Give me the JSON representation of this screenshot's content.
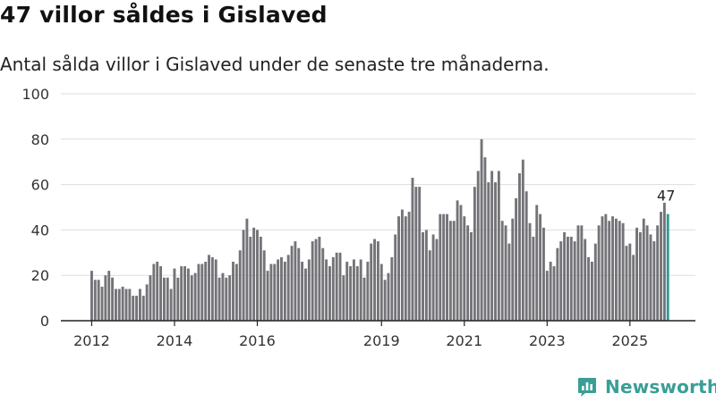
{
  "title": "47 villor såldes i Gislaved",
  "subtitle": "Antal sålda villor i Gislaved under de senaste tre månaderna.",
  "brand": {
    "name": "Newsworthy",
    "logo_icon": "newsworthy-logo-icon"
  },
  "colors": {
    "bar": "#747378",
    "highlight": "#2e9b96",
    "grid": "#dddddd",
    "axis": "#222222",
    "brand": "#3a9e96"
  },
  "chart_data": {
    "type": "bar",
    "title": "47 villor såldes i Gislaved",
    "subtitle": "Antal sålda villor i Gislaved under de senaste tre månaderna.",
    "xlabel": "",
    "ylabel": "",
    "ylim": [
      0,
      100
    ],
    "yticks": [
      0,
      20,
      40,
      60,
      80,
      100
    ],
    "grid": true,
    "start_period": "2012-01",
    "frequency": "monthly",
    "xtick_labels": [
      {
        "label": "2012",
        "index": 0
      },
      {
        "label": "2014",
        "index": 24
      },
      {
        "label": "2016",
        "index": 48
      },
      {
        "label": "2019",
        "index": 84
      },
      {
        "label": "2021",
        "index": 108
      },
      {
        "label": "2023",
        "index": 132
      },
      {
        "label": "2025",
        "index": 156
      }
    ],
    "values": [
      22,
      18,
      18,
      15,
      20,
      22,
      19,
      14,
      14,
      15,
      14,
      14,
      11,
      11,
      14,
      11,
      16,
      20,
      25,
      26,
      24,
      19,
      19,
      14,
      23,
      19,
      24,
      24,
      23,
      20,
      21,
      25,
      25,
      26,
      29,
      28,
      27,
      19,
      21,
      19,
      20,
      26,
      25,
      31,
      40,
      45,
      37,
      41,
      40,
      37,
      31,
      22,
      25,
      25,
      27,
      28,
      26,
      29,
      33,
      35,
      32,
      26,
      23,
      27,
      35,
      36,
      37,
      32,
      27,
      24,
      28,
      30,
      30,
      20,
      26,
      24,
      27,
      24,
      27,
      19,
      26,
      34,
      36,
      35,
      25,
      18,
      21,
      28,
      38,
      46,
      49,
      46,
      48,
      63,
      59,
      59,
      39,
      40,
      31,
      38,
      36,
      47,
      47,
      47,
      44,
      44,
      53,
      51,
      46,
      42,
      39,
      59,
      66,
      80,
      72,
      61,
      66,
      61,
      66,
      44,
      42,
      34,
      45,
      54,
      65,
      71,
      57,
      43,
      37,
      51,
      47,
      41,
      22,
      26,
      24,
      32,
      35,
      39,
      37,
      37,
      35,
      42,
      42,
      36,
      28,
      26,
      34,
      42,
      46,
      47,
      44,
      46,
      45,
      44,
      43,
      33,
      34,
      29,
      41,
      39,
      45,
      42,
      38,
      35,
      42,
      48,
      52,
      47
    ],
    "highlight_index": 167,
    "highlight_label": "47"
  }
}
